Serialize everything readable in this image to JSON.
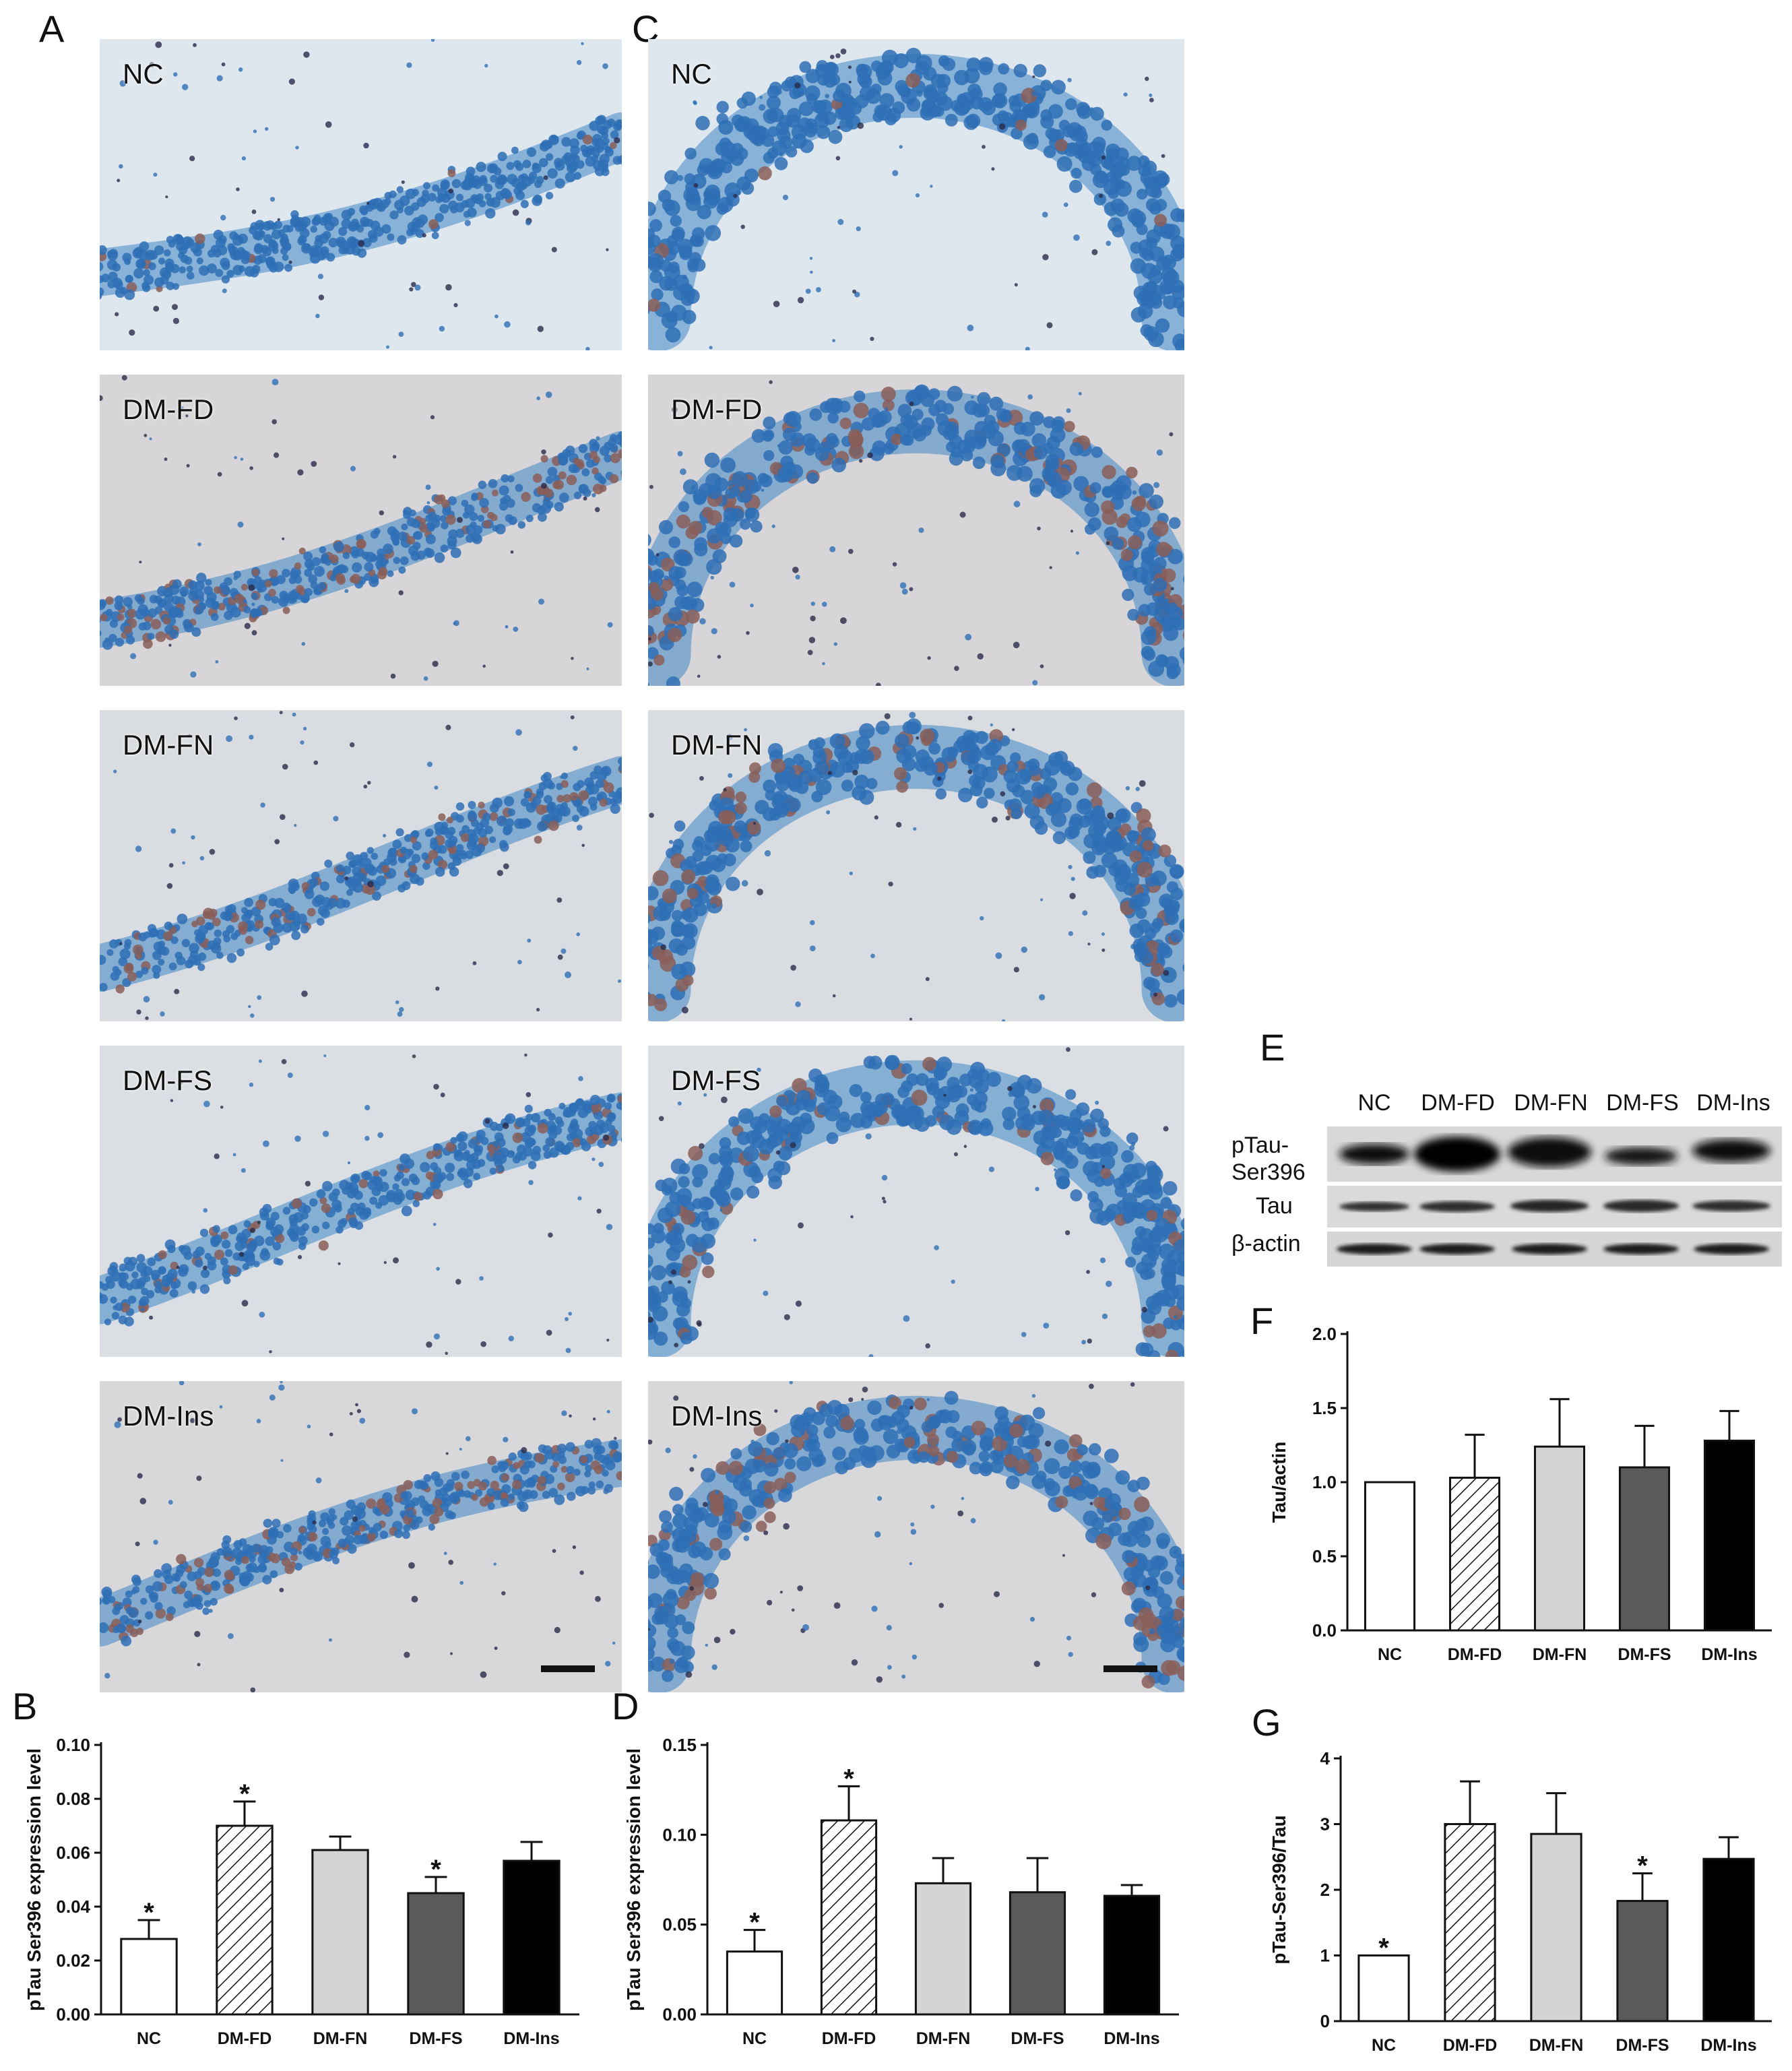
{
  "panels": {
    "A": "A",
    "B": "B",
    "C": "C",
    "D": "D",
    "E": "E",
    "F": "F",
    "G": "G"
  },
  "micrographs": {
    "groups": [
      "NC",
      "DM-FD",
      "DM-FN",
      "DM-FS",
      "DM-Ins"
    ],
    "colors": {
      "background": "#dfe7ee",
      "cell_layer": "#3f86c6",
      "nucleus": "#2e6fb5",
      "dark_cell": "#2a2a4a",
      "brown_stain": "#b58a78"
    }
  },
  "western_blot": {
    "lanes": [
      "NC",
      "DM-FD",
      "DM-FN",
      "DM-FS",
      "DM-Ins"
    ],
    "rows": [
      {
        "label_line1": "pTau-",
        "label_line2": "Ser396"
      },
      {
        "label_line1": "Tau",
        "label_line2": ""
      },
      {
        "label_line1": "β-actin",
        "label_line2": ""
      }
    ]
  },
  "chart_data": [
    {
      "panel": "B",
      "type": "bar",
      "categories": [
        "NC",
        "DM-FD",
        "DM-FN",
        "DM-FS",
        "DM-Ins"
      ],
      "values": [
        0.028,
        0.07,
        0.061,
        0.045,
        0.057
      ],
      "errors": [
        0.007,
        0.009,
        0.005,
        0.006,
        0.007
      ],
      "significant": [
        "*",
        "*",
        "",
        "*",
        ""
      ],
      "ylabel": "pTau Ser396 expression level",
      "ylim": [
        0,
        0.1
      ],
      "yticks": [
        "0.00",
        "0.02",
        "0.04",
        "0.06",
        "0.08",
        "0.10"
      ],
      "fills": [
        "white",
        "hatch",
        "#d3d3d3",
        "#5a5a5a",
        "#000000"
      ]
    },
    {
      "panel": "D",
      "type": "bar",
      "categories": [
        "NC",
        "DM-FD",
        "DM-FN",
        "DM-FS",
        "DM-Ins"
      ],
      "values": [
        0.035,
        0.108,
        0.073,
        0.068,
        0.066
      ],
      "errors": [
        0.012,
        0.019,
        0.014,
        0.019,
        0.006
      ],
      "significant": [
        "*",
        "*",
        "",
        "",
        ""
      ],
      "ylabel": "pTau Ser396 expression level",
      "ylim": [
        0,
        0.15
      ],
      "yticks": [
        "0.00",
        "0.05",
        "0.10",
        "0.15"
      ],
      "fills": [
        "white",
        "hatch",
        "#d3d3d3",
        "#5a5a5a",
        "#000000"
      ]
    },
    {
      "panel": "F",
      "type": "bar",
      "categories": [
        "NC",
        "DM-FD",
        "DM-FN",
        "DM-FS",
        "DM-Ins"
      ],
      "values": [
        1.0,
        1.03,
        1.24,
        1.1,
        1.28
      ],
      "errors": [
        0.0,
        0.29,
        0.32,
        0.28,
        0.2
      ],
      "significant": [
        "",
        "",
        "",
        "",
        ""
      ],
      "ylabel": "Tau/actin",
      "ylim": [
        0,
        2.0
      ],
      "yticks": [
        "0.0",
        "0.5",
        "1.0",
        "1.5",
        "2.0"
      ],
      "fills": [
        "white",
        "hatch",
        "#d3d3d3",
        "#5a5a5a",
        "#000000"
      ]
    },
    {
      "panel": "G",
      "type": "bar",
      "categories": [
        "NC",
        "DM-FD",
        "DM-FN",
        "DM-FS",
        "DM-Ins"
      ],
      "values": [
        1.0,
        3.0,
        2.85,
        1.83,
        2.47
      ],
      "errors": [
        0.0,
        0.65,
        0.62,
        0.42,
        0.33
      ],
      "significant": [
        "*",
        "",
        "",
        "*",
        ""
      ],
      "ylabel": "pTau-Ser396/Tau",
      "ylim": [
        0,
        4
      ],
      "yticks": [
        "0",
        "1",
        "2",
        "3",
        "4"
      ],
      "fills": [
        "white",
        "hatch",
        "#d3d3d3",
        "#5a5a5a",
        "#000000"
      ]
    }
  ]
}
